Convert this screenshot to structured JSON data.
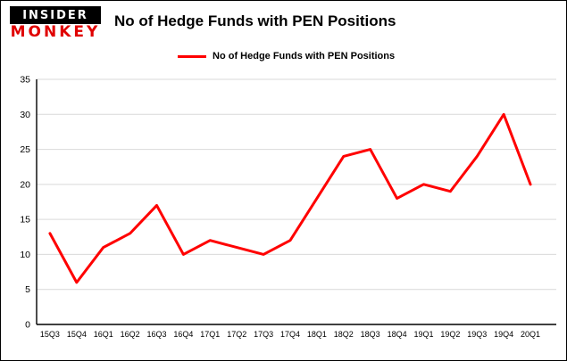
{
  "logo": {
    "line1": "INSIDER",
    "line2": "MONKEY",
    "bar_color": "#000000",
    "accent_color": "#e00000"
  },
  "header": {
    "title": "No of Hedge Funds with PEN Positions"
  },
  "legend": {
    "label": "No of Hedge Funds with PEN Positions",
    "color": "#ff0000"
  },
  "chart_data": {
    "type": "line",
    "title": "No of Hedge Funds with PEN Positions",
    "series_name": "No of Hedge Funds with PEN Positions",
    "categories": [
      "15Q3",
      "15Q4",
      "16Q1",
      "16Q2",
      "16Q3",
      "16Q4",
      "17Q1",
      "17Q2",
      "17Q3",
      "17Q4",
      "18Q1",
      "18Q2",
      "18Q3",
      "18Q4",
      "19Q1",
      "19Q2",
      "19Q3",
      "19Q4",
      "20Q1"
    ],
    "values": [
      13,
      6,
      11,
      13,
      17,
      10,
      12,
      11,
      10,
      12,
      18,
      24,
      25,
      18,
      20,
      19,
      24,
      30,
      20
    ],
    "xlabel": "",
    "ylabel": "",
    "ylim": [
      0,
      35
    ],
    "ytick_interval": 5,
    "yticks": [
      0,
      5,
      10,
      15,
      20,
      25,
      30,
      35
    ],
    "grid": true,
    "legend_position": "top-left",
    "line_color": "#ff0000",
    "grid_color": "#d9d9d9",
    "axis_color": "#000000",
    "label_color": "#000000"
  }
}
